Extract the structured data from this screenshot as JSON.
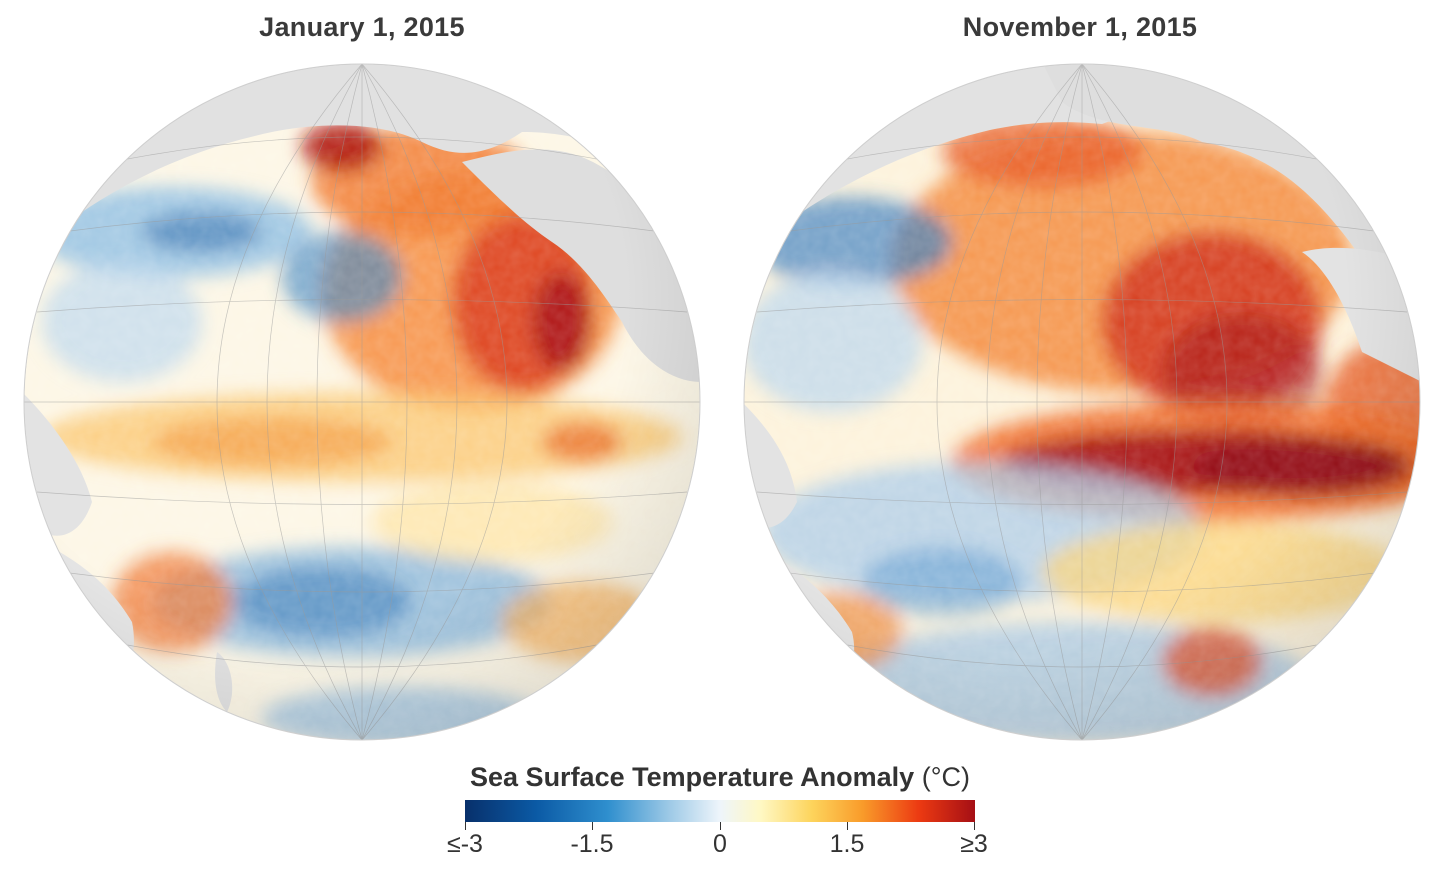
{
  "panels": [
    {
      "title": "January 1, 2015"
    },
    {
      "title": "November 1, 2015"
    }
  ],
  "legend": {
    "title_bold": "Sea Surface Temperature Anomaly",
    "unit": "(°C)",
    "ticks": [
      "≤-3",
      "-1.5",
      "0",
      "1.5",
      "≥3"
    ],
    "colors": [
      "#08306b",
      "#2f8fce",
      "#eef5fb",
      "#fdd45c",
      "#ec3a12",
      "#a50f15"
    ]
  }
}
